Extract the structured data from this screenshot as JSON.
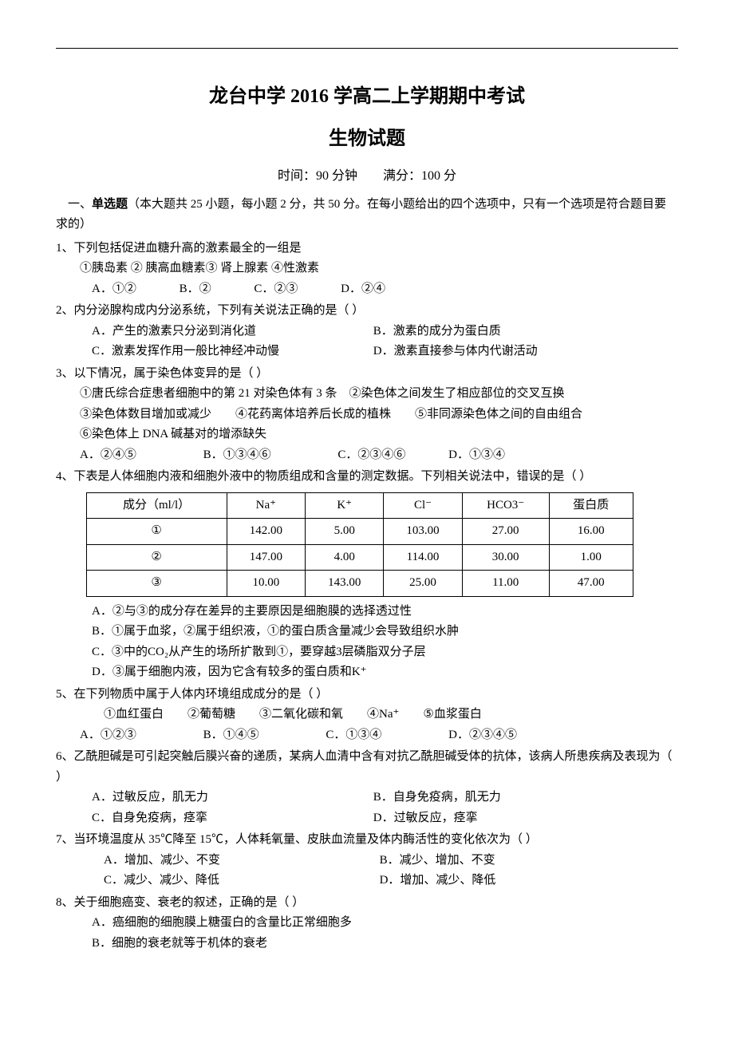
{
  "header": {
    "title": "龙台中学 2016 学高二上学期期中考试",
    "subtitle": "生物试题",
    "meta": "时间：90 分钟　　满分：100 分"
  },
  "section1": {
    "heading": "一、单选题（本大题共 25 小题，每小题 2 分，共 50 分。在每小题给出的四个选项中，只有一个选项是符合题目要求的）"
  },
  "q1": {
    "stem": "1、下列包括促进血糖升高的激素最全的一组是",
    "items": "①胰岛素 ② 胰高血糖素③ 肾上腺素 ④性激素",
    "optA": "A．①②",
    "optB": "B．②",
    "optC": "C．②③",
    "optD": "D．②④"
  },
  "q2": {
    "stem": "2、内分泌腺构成内分泌系统，下列有关说法正确的是（ ）",
    "optA": "A．产生的激素只分泌到消化道",
    "optB": "B．激素的成分为蛋白质",
    "optC": "C．激素发挥作用一般比神经冲动慢",
    "optD": "D．激素直接参与体内代谢活动"
  },
  "q3": {
    "stem": "3、以下情况，属于染色体变异的是（ ）",
    "line1": "①唐氏综合症患者细胞中的第 21 对染色体有 3 条　②染色体之间发生了相应部位的交叉互换",
    "line2": "③染色体数目增加或减少　　④花药离体培养后长成的植株　　⑤非同源染色体之间的自由组合",
    "line3": "⑥染色体上 DNA 碱基对的增添缺失",
    "optA": "A．②④⑤",
    "optB": "B．①③④⑥",
    "optC": "C．②③④⑥",
    "optD": "D．①③④"
  },
  "q4": {
    "stem": "4、下表是人体细胞内液和细胞外液中的物质组成和含量的测定数据。下列相关说法中，错误的是（ ）",
    "table": {
      "header": [
        "成分（ml/l）",
        "Na⁺",
        "K⁺",
        "Cl⁻",
        "HCO3⁻",
        "蛋白质"
      ],
      "rows": [
        [
          "①",
          "142.00",
          "5.00",
          "103.00",
          "27.00",
          "16.00"
        ],
        [
          "②",
          "147.00",
          "4.00",
          "114.00",
          "30.00",
          "1.00"
        ],
        [
          "③",
          "10.00",
          "143.00",
          "25.00",
          "11.00",
          "47.00"
        ]
      ]
    },
    "optA": "A．②与③的成分存在差异的主要原因是细胞膜的选择透过性",
    "optB": "B．①属于血浆，②属于组织液，①的蛋白质含量减少会导致组织水肿",
    "optC": "C．③中的CO₂从产生的场所扩散到①，要穿越3层磷脂双分子层",
    "optD": "D．③属于细胞内液，因为它含有较多的蛋白质和K⁺"
  },
  "q5": {
    "stem": "5、在下列物质中属于人体内环境组成成分的是（ ）",
    "items": "①血红蛋白　　②葡萄糖　　③二氧化碳和氧　　④Na⁺　　⑤血浆蛋白",
    "optA": "A．①②③",
    "optB": "B．①④⑤",
    "optC": "C．①③④",
    "optD": "D．②③④⑤"
  },
  "q6": {
    "stem": "6、乙酰胆碱是可引起突触后膜兴奋的递质，某病人血清中含有对抗乙酰胆碱受体的抗体，该病人所患疾病及表现为（ ）",
    "optA": "A．过敏反应，肌无力",
    "optB": "B．自身免疫病，肌无力",
    "optC": "C．自身免疫病，痉挛",
    "optD": "D．过敏反应，痉挛"
  },
  "q7": {
    "stem": "7、当环境温度从 35℃降至 15℃，人体耗氧量、皮肤血流量及体内酶活性的变化依次为（ ）",
    "optA": "A．增加、减少、不变",
    "optB": "B．减少、增加、不变",
    "optC": "C．减少、减少、降低",
    "optD": "D．增加、减少、降低"
  },
  "q8": {
    "stem": "8、关于细胞癌变、衰老的叙述，正确的是（ ）",
    "optA": "A．癌细胞的细胞膜上糖蛋白的含量比正常细胞多",
    "optB": "B．细胞的衰老就等于机体的衰老"
  }
}
